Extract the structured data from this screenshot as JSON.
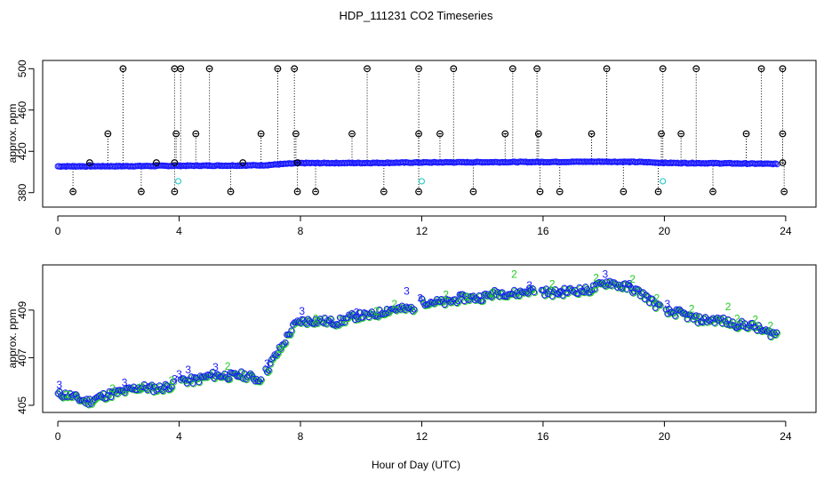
{
  "title": "HDP_111231  CO2 Timeseries",
  "xlabel": "Hour of Day (UTC)",
  "colors": {
    "main": "#1a1aff",
    "flag2": "#22cc22",
    "flag3": "#1a1aff",
    "outlier": "#000000",
    "cyan": "#33cccc",
    "drop": "#000000"
  },
  "chart_data": [
    {
      "type": "scatter",
      "title": "HDP_111231  CO2 Timeseries",
      "xlabel": "",
      "ylabel": "approx. ppm",
      "xlim": [
        -0.5,
        25
      ],
      "ylim": [
        366,
        508
      ],
      "xticks": [
        0,
        4,
        8,
        12,
        16,
        20,
        24
      ],
      "xtick_labels": [
        "0",
        "4",
        "8",
        "12",
        "16",
        "20",
        "24"
      ],
      "yticks": [
        380,
        420,
        460,
        500
      ],
      "ytick_labels": [
        "380",
        "420",
        "460",
        "500"
      ],
      "baseline_anchors": [
        [
          0,
          405.5
        ],
        [
          2,
          405.6
        ],
        [
          4,
          406.0
        ],
        [
          6,
          406.3
        ],
        [
          6.8,
          406.5
        ],
        [
          7.3,
          407.5
        ],
        [
          8,
          408.6
        ],
        [
          10,
          408.7
        ],
        [
          12,
          409.2
        ],
        [
          14,
          409.5
        ],
        [
          16,
          409.7
        ],
        [
          18,
          410.0
        ],
        [
          19.3,
          409.6
        ],
        [
          20,
          408.8
        ],
        [
          22,
          408.4
        ],
        [
          23.7,
          407.8
        ]
      ],
      "outliers_high": [
        [
          2.15,
          500
        ],
        [
          3.85,
          500
        ],
        [
          4.05,
          500
        ],
        [
          5.0,
          500
        ],
        [
          7.25,
          500
        ],
        [
          7.8,
          500
        ],
        [
          10.2,
          500
        ],
        [
          11.9,
          500
        ],
        [
          13.05,
          500
        ],
        [
          15.0,
          500
        ],
        [
          15.8,
          500
        ],
        [
          18.1,
          500
        ],
        [
          19.95,
          500
        ],
        [
          21.05,
          500
        ],
        [
          23.2,
          500
        ],
        [
          23.9,
          500
        ]
      ],
      "outliers_mid": [
        [
          1.65,
          437
        ],
        [
          3.9,
          437
        ],
        [
          4.55,
          437
        ],
        [
          6.7,
          437
        ],
        [
          7.85,
          437
        ],
        [
          9.7,
          437
        ],
        [
          11.9,
          437
        ],
        [
          12.6,
          437
        ],
        [
          14.75,
          437
        ],
        [
          15.85,
          437
        ],
        [
          17.6,
          437
        ],
        [
          19.9,
          437
        ],
        [
          20.55,
          437
        ],
        [
          22.7,
          437
        ],
        [
          23.9,
          437
        ]
      ],
      "outliers_low": [
        [
          0.5,
          381
        ],
        [
          2.75,
          381
        ],
        [
          3.85,
          381
        ],
        [
          5.7,
          381
        ],
        [
          7.9,
          381
        ],
        [
          8.5,
          381
        ],
        [
          10.75,
          381
        ],
        [
          11.9,
          381
        ],
        [
          13.7,
          381
        ],
        [
          15.9,
          381
        ],
        [
          16.55,
          381
        ],
        [
          18.65,
          381
        ],
        [
          19.8,
          381
        ],
        [
          21.6,
          381
        ],
        [
          23.95,
          381
        ]
      ],
      "outliers_near": [
        [
          1.05,
          409
        ],
        [
          3.25,
          409
        ],
        [
          3.85,
          409
        ],
        [
          6.1,
          409
        ],
        [
          7.9,
          409
        ],
        [
          23.9,
          409
        ]
      ],
      "cyan_points": [
        [
          3.97,
          391
        ],
        [
          12.0,
          391
        ],
        [
          19.95,
          391
        ]
      ]
    },
    {
      "type": "scatter",
      "title": "",
      "xlabel": "Hour of Day (UTC)",
      "ylabel": "approx. ppm",
      "xlim": [
        -0.5,
        25
      ],
      "ylim": [
        404.7,
        410.9
      ],
      "xticks": [
        0,
        4,
        8,
        12,
        16,
        20,
        24
      ],
      "xtick_labels": [
        "0",
        "4",
        "8",
        "12",
        "16",
        "20",
        "24"
      ],
      "yticks": [
        405,
        407,
        409
      ],
      "ytick_labels": [
        "405",
        "407",
        "409"
      ],
      "anchors": [
        [
          0,
          405.45
        ],
        [
          0.5,
          405.35
        ],
        [
          1.0,
          405.2
        ],
        [
          1.5,
          405.35
        ],
        [
          2.0,
          405.6
        ],
        [
          3.0,
          405.75
        ],
        [
          3.8,
          405.8
        ],
        [
          4.0,
          406.05
        ],
        [
          4.8,
          406.15
        ],
        [
          5.5,
          406.3
        ],
        [
          6.0,
          406.25
        ],
        [
          6.6,
          406.1
        ],
        [
          6.85,
          406.45
        ],
        [
          7.1,
          406.95
        ],
        [
          7.4,
          407.45
        ],
        [
          7.6,
          407.95
        ],
        [
          7.8,
          408.4
        ],
        [
          8.0,
          408.6
        ],
        [
          8.6,
          408.5
        ],
        [
          9.2,
          408.55
        ],
        [
          10.0,
          408.75
        ],
        [
          11.0,
          409.0
        ],
        [
          11.8,
          409.15
        ],
        [
          12.0,
          409.3
        ],
        [
          13.0,
          409.4
        ],
        [
          14.0,
          409.6
        ],
        [
          15.0,
          409.75
        ],
        [
          15.5,
          409.8
        ],
        [
          16.0,
          409.8
        ],
        [
          16.8,
          409.75
        ],
        [
          17.5,
          409.9
        ],
        [
          18.2,
          410.15
        ],
        [
          18.8,
          410.0
        ],
        [
          19.3,
          409.6
        ],
        [
          19.8,
          409.2
        ],
        [
          20.0,
          408.95
        ],
        [
          20.8,
          408.75
        ],
        [
          21.5,
          408.55
        ],
        [
          22.0,
          408.55
        ],
        [
          23.0,
          408.25
        ],
        [
          23.75,
          408.0
        ]
      ],
      "gaps": [
        [
          3.8,
          4.0
        ],
        [
          6.72,
          6.82
        ],
        [
          11.8,
          12.0
        ],
        [
          15.72,
          15.95
        ],
        [
          19.86,
          20.02
        ]
      ],
      "labels_3": [
        [
          0.05,
          405.7
        ],
        [
          2.2,
          405.8
        ],
        [
          3.85,
          405.95
        ],
        [
          4.0,
          406.15
        ],
        [
          4.3,
          406.35
        ],
        [
          5.2,
          406.45
        ],
        [
          6.9,
          406.6
        ],
        [
          8.05,
          408.8
        ],
        [
          9.85,
          408.75
        ],
        [
          11.5,
          409.65
        ],
        [
          11.95,
          409.35
        ],
        [
          15.55,
          409.9
        ],
        [
          16.55,
          409.6
        ],
        [
          18.05,
          410.35
        ],
        [
          18.85,
          409.95
        ],
        [
          20.1,
          409.1
        ]
      ],
      "labels_2": [
        [
          0.3,
          405.3
        ],
        [
          1.8,
          405.55
        ],
        [
          2.7,
          405.6
        ],
        [
          3.75,
          405.9
        ],
        [
          5.6,
          406.5
        ],
        [
          7.35,
          407.2
        ],
        [
          8.5,
          408.5
        ],
        [
          10.5,
          408.8
        ],
        [
          11.1,
          409.1
        ],
        [
          12.8,
          409.5
        ],
        [
          13.5,
          409.4
        ],
        [
          14.3,
          409.55
        ],
        [
          15.05,
          410.35
        ],
        [
          16.3,
          409.95
        ],
        [
          17.75,
          410.2
        ],
        [
          18.95,
          410.15
        ],
        [
          19.75,
          409.35
        ],
        [
          20.9,
          408.9
        ],
        [
          22.1,
          409.0
        ],
        [
          22.4,
          408.5
        ],
        [
          23.0,
          408.45
        ],
        [
          23.5,
          408.2
        ]
      ]
    }
  ]
}
